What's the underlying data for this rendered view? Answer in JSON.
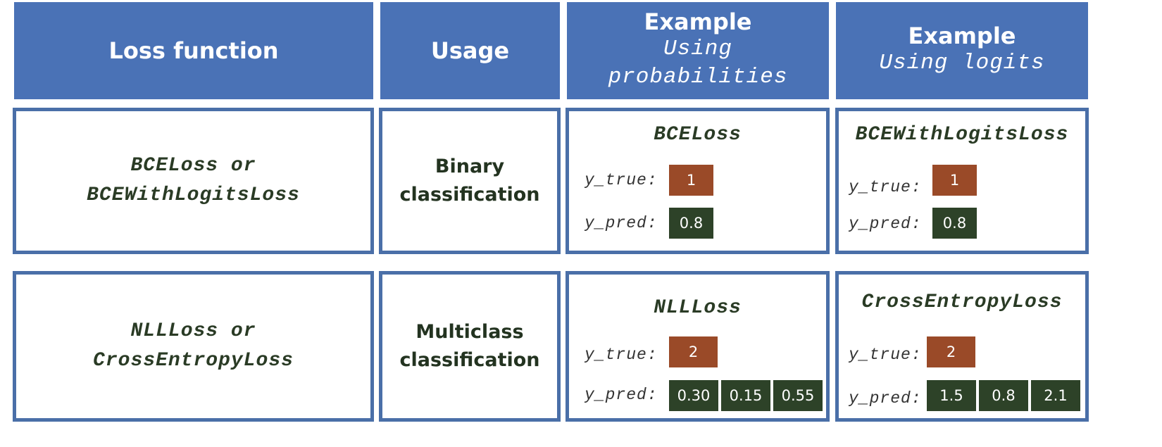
{
  "headers": {
    "loss_function": "Loss function",
    "usage": "Usage",
    "example_prob": {
      "title": "Example",
      "sub_line1": "Using",
      "sub_line2": "probabilities"
    },
    "example_logits": {
      "title": "Example",
      "sub": "Using logits"
    }
  },
  "rows": [
    {
      "loss_line1": "BCELoss or",
      "loss_line2": "BCEWithLogitsLoss",
      "usage_line1": "Binary",
      "usage_line2": "classification",
      "prob_example": {
        "name": "BCELoss",
        "y_true_label": "y_true:",
        "y_pred_label": "y_pred:",
        "y_true": "1",
        "y_pred": [
          "0.8"
        ]
      },
      "logit_example": {
        "name": "BCEWithLogitsLoss",
        "y_true_label": "y_true:",
        "y_pred_label": "y_pred:",
        "y_true": "1",
        "y_pred": [
          "0.8"
        ]
      }
    },
    {
      "loss_line1": "NLLLoss or",
      "loss_line2": "CrossEntropyLoss",
      "usage_line1": "Multiclass",
      "usage_line2": "classification",
      "prob_example": {
        "name": "NLLLoss",
        "y_true_label": "y_true:",
        "y_pred_label": "y_pred:",
        "y_true": "2",
        "y_pred": [
          "0.30",
          "0.15",
          "0.55"
        ]
      },
      "logit_example": {
        "name": "CrossEntropyLoss",
        "y_true_label": "y_true:",
        "y_pred_label": "y_pred:",
        "y_true": "2",
        "y_pred": [
          "1.5",
          "0.8",
          "2.1"
        ]
      }
    }
  ],
  "colors": {
    "header_bg": "#4a72b6",
    "cell_border": "#4a6fa8",
    "y_true_box": "#9a4a28",
    "y_pred_box": "#2d4228"
  }
}
